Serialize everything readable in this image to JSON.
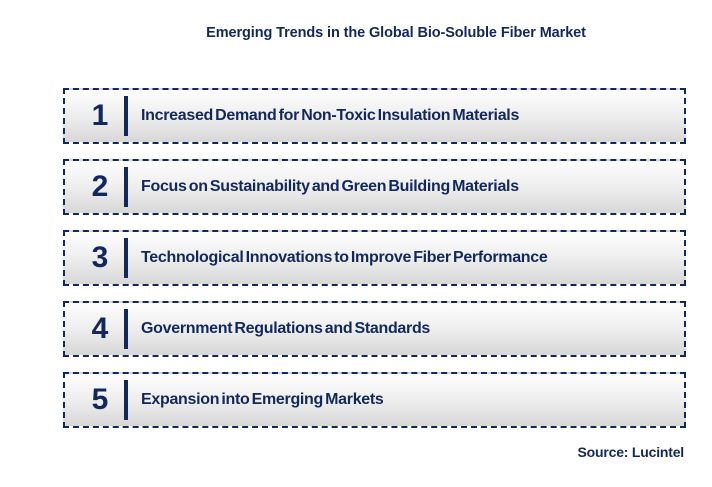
{
  "title": "Emerging Trends in the Global Bio-Soluble Fiber Market",
  "source": "Source: Lucintel",
  "colors": {
    "navy": "#12285C",
    "row_border": "#12285C",
    "row_bg_top": "#FEFEFE",
    "row_bg_bottom": "#D7D7D7",
    "page_bg": "#FFFFFF"
  },
  "trends": [
    {
      "number": "1",
      "label": "Increased Demand for Non-Toxic Insulation Materials"
    },
    {
      "number": "2",
      "label": "Focus on Sustainability and Green Building Materials"
    },
    {
      "number": "3",
      "label": "Technological Innovations to Improve Fiber Performance"
    },
    {
      "number": "4",
      "label": "Government Regulations and Standards"
    },
    {
      "number": "5",
      "label": "Expansion into Emerging Markets"
    }
  ]
}
